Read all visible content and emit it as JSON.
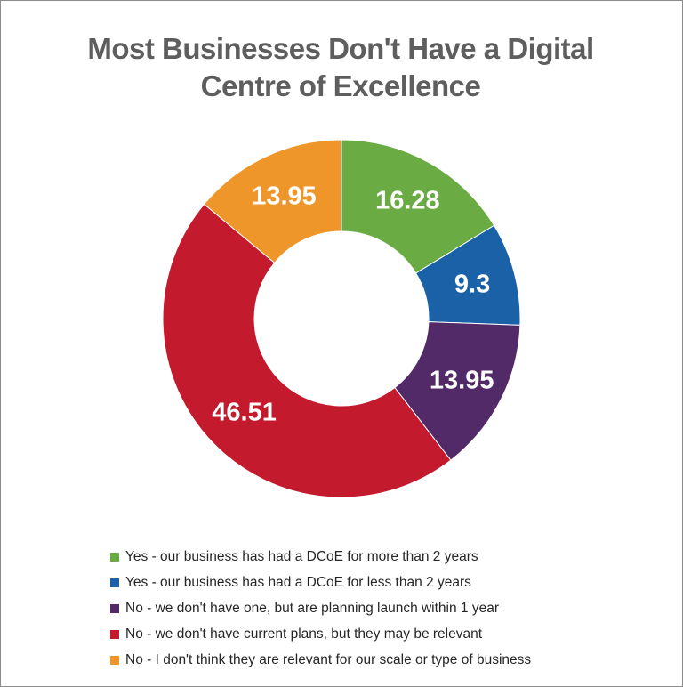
{
  "chart_data": {
    "type": "pie",
    "title_lines": [
      "Most Businesses Don't Have a Digital",
      "Centre of Excellence"
    ],
    "slices": [
      {
        "label": "Yes - our business has had a DCoE for more than 2 years",
        "value": 16.28,
        "value_label": "16.28",
        "color": "#6aac43"
      },
      {
        "label": "Yes - our business has had a DCoE for less than 2 years",
        "value": 9.3,
        "value_label": "9.3",
        "color": "#1b61a8"
      },
      {
        "label": "No - we don't have one, but are planning launch within 1 year",
        "value": 13.95,
        "value_label": "13.95",
        "color": "#512a67"
      },
      {
        "label": "No - we don't have current plans, but they may be relevant",
        "value": 46.51,
        "value_label": "46.51",
        "color": "#c41a2e"
      },
      {
        "label": "No - I don't think they are relevant for our scale or type of business",
        "value": 13.95,
        "value_label": "13.95",
        "color": "#ee962a"
      }
    ],
    "legend_position": "bottom",
    "hole": true
  }
}
